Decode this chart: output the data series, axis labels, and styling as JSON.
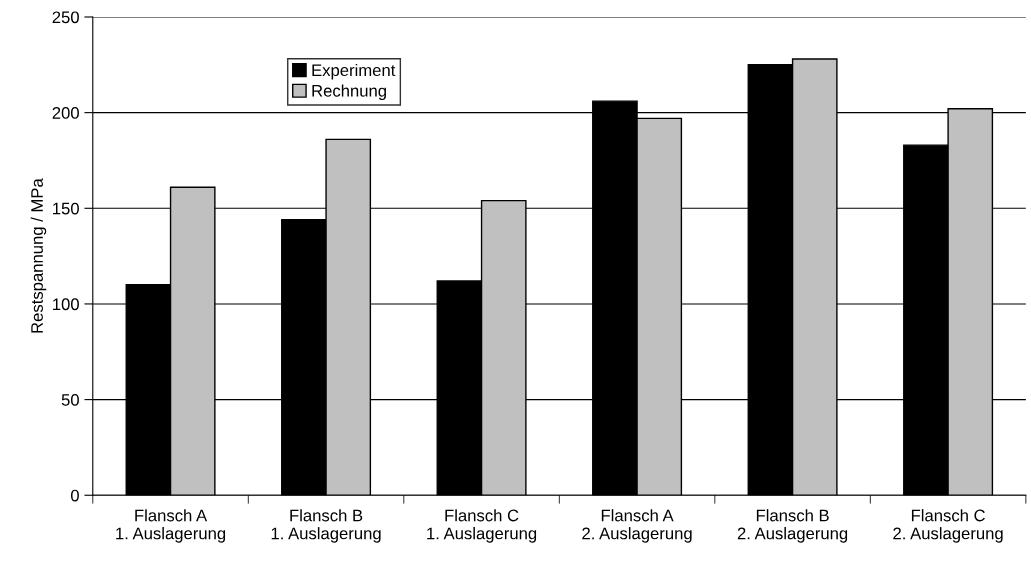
{
  "chart_data": {
    "type": "bar",
    "ylabel": "Restspannung / MPa",
    "categories": [
      "Flansch A\n1. Auslagerung",
      "Flansch B\n1. Auslagerung",
      "Flansch C\n1. Auslagerung",
      "Flansch A\n2. Auslagerung",
      "Flansch B\n2. Auslagerung",
      "Flansch C\n2. Auslagerung"
    ],
    "series": [
      {
        "name": "Experiment",
        "color": "#000000",
        "values": [
          110,
          144,
          112,
          206,
          225,
          183
        ]
      },
      {
        "name": "Rechnung",
        "color": "#c0c0c0",
        "values": [
          161,
          186,
          154,
          197,
          228,
          202
        ]
      }
    ],
    "ylim": [
      0,
      250
    ],
    "yticks": [
      0,
      50,
      100,
      150,
      200,
      250
    ],
    "grid": "y",
    "legend": "top left"
  }
}
